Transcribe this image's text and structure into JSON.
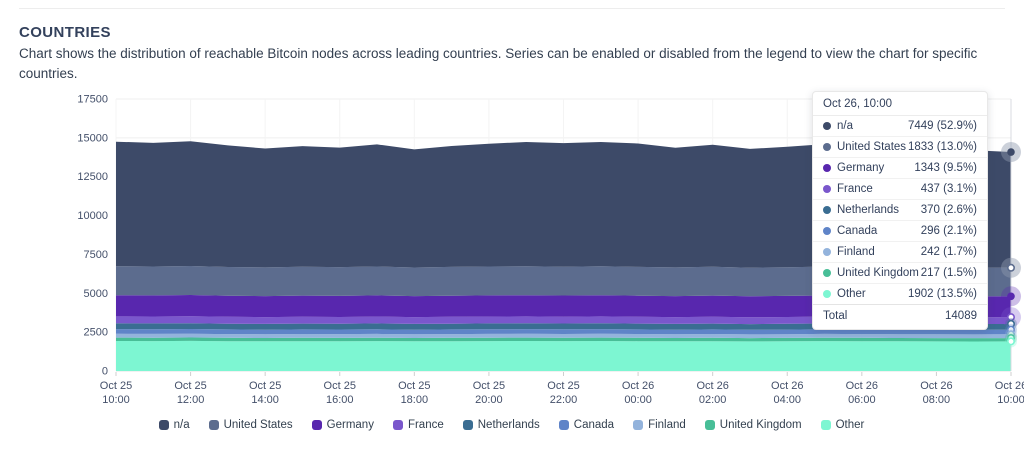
{
  "header": {
    "title": "COUNTRIES",
    "description": "Chart shows the distribution of reachable Bitcoin nodes across leading countries. Series can be enabled or disabled from the legend to view the chart for specific countries."
  },
  "chart_data": {
    "type": "area",
    "stacked": true,
    "title": "",
    "xlabel": "",
    "ylabel": "",
    "ylim": [
      0,
      17500
    ],
    "y_ticks": [
      0,
      2500,
      5000,
      7500,
      10000,
      12500,
      15000,
      17500
    ],
    "x_ticks": [
      {
        "date": "Oct 25",
        "time": "10:00"
      },
      {
        "date": "Oct 25",
        "time": "12:00"
      },
      {
        "date": "Oct 25",
        "time": "14:00"
      },
      {
        "date": "Oct 25",
        "time": "16:00"
      },
      {
        "date": "Oct 25",
        "time": "18:00"
      },
      {
        "date": "Oct 25",
        "time": "20:00"
      },
      {
        "date": "Oct 25",
        "time": "22:00"
      },
      {
        "date": "Oct 26",
        "time": "00:00"
      },
      {
        "date": "Oct 26",
        "time": "02:00"
      },
      {
        "date": "Oct 26",
        "time": "04:00"
      },
      {
        "date": "Oct 26",
        "time": "06:00"
      },
      {
        "date": "Oct 26",
        "time": "08:00"
      },
      {
        "date": "Oct 26",
        "time": "10:00"
      }
    ],
    "legend_position": "bottom",
    "series": [
      {
        "name": "n/a",
        "color": "#3d4a68",
        "values": [
          8010,
          7950,
          8030,
          7820,
          7650,
          7760,
          7690,
          7860,
          7600,
          7780,
          7900,
          7990,
          7950,
          8000,
          7940,
          7700,
          7850,
          7640,
          7750,
          7880,
          7800,
          7750,
          7620,
          7560,
          7449
        ]
      },
      {
        "name": "United States",
        "color": "#5c6c8e",
        "values": [
          1862,
          1858,
          1864,
          1852,
          1846,
          1854,
          1850,
          1858,
          1844,
          1852,
          1858,
          1862,
          1856,
          1860,
          1854,
          1846,
          1852,
          1842,
          1848,
          1856,
          1850,
          1846,
          1840,
          1836,
          1833
        ]
      },
      {
        "name": "Germany",
        "color": "#5827ae",
        "values": [
          1366,
          1362,
          1368,
          1356,
          1352,
          1360,
          1355,
          1362,
          1350,
          1357,
          1362,
          1366,
          1360,
          1364,
          1358,
          1352,
          1358,
          1348,
          1354,
          1360,
          1355,
          1352,
          1347,
          1344,
          1343
        ]
      },
      {
        "name": "France",
        "color": "#7a57cc",
        "values": [
          443,
          442,
          444,
          440,
          438,
          441,
          439,
          442,
          438,
          440,
          442,
          443,
          441,
          443,
          440,
          438,
          441,
          437,
          439,
          442,
          440,
          439,
          438,
          437,
          437
        ]
      },
      {
        "name": "Netherlands",
        "color": "#3a6d92",
        "values": [
          375,
          374,
          376,
          372,
          370,
          373,
          371,
          374,
          370,
          372,
          374,
          375,
          373,
          375,
          372,
          370,
          373,
          369,
          371,
          374,
          372,
          371,
          370,
          370,
          370
        ]
      },
      {
        "name": "Canada",
        "color": "#5f84c8",
        "values": [
          300,
          299,
          301,
          297,
          295,
          298,
          296,
          299,
          295,
          297,
          299,
          300,
          298,
          300,
          297,
          295,
          298,
          294,
          296,
          299,
          297,
          296,
          295,
          296,
          296
        ]
      },
      {
        "name": "Finland",
        "color": "#93b3dc",
        "values": [
          245,
          244,
          246,
          242,
          240,
          243,
          241,
          244,
          240,
          242,
          244,
          245,
          243,
          245,
          242,
          240,
          243,
          239,
          241,
          244,
          242,
          241,
          240,
          241,
          242
        ]
      },
      {
        "name": "United Kingdom",
        "color": "#48be97",
        "values": [
          220,
          219,
          221,
          217,
          215,
          218,
          216,
          219,
          215,
          217,
          219,
          220,
          218,
          220,
          217,
          215,
          218,
          214,
          216,
          219,
          217,
          216,
          215,
          216,
          217
        ]
      },
      {
        "name": "Other",
        "color": "#7df6d2",
        "values": [
          1930,
          1926,
          1934,
          1918,
          1910,
          1920,
          1914,
          1924,
          1908,
          1918,
          1924,
          1930,
          1922,
          1928,
          1920,
          1910,
          1920,
          1904,
          1912,
          1922,
          1916,
          1910,
          1904,
          1900,
          1902
        ]
      }
    ]
  },
  "tooltip": {
    "title": "Oct 26, 10:00",
    "rows": [
      {
        "label": "n/a",
        "value": "7449 (52.9%)"
      },
      {
        "label": "United States",
        "value": "1833 (13.0%)"
      },
      {
        "label": "Germany",
        "value": "1343 (9.5%)"
      },
      {
        "label": "France",
        "value": "437 (3.1%)"
      },
      {
        "label": "Netherlands",
        "value": "370 (2.6%)"
      },
      {
        "label": "Canada",
        "value": "296 (2.1%)"
      },
      {
        "label": "Finland",
        "value": "242 (1.7%)"
      },
      {
        "label": "United Kingdom",
        "value": "217 (1.5%)"
      },
      {
        "label": "Other",
        "value": "1902 (13.5%)"
      }
    ],
    "total_label": "Total",
    "total_value": "14089"
  }
}
